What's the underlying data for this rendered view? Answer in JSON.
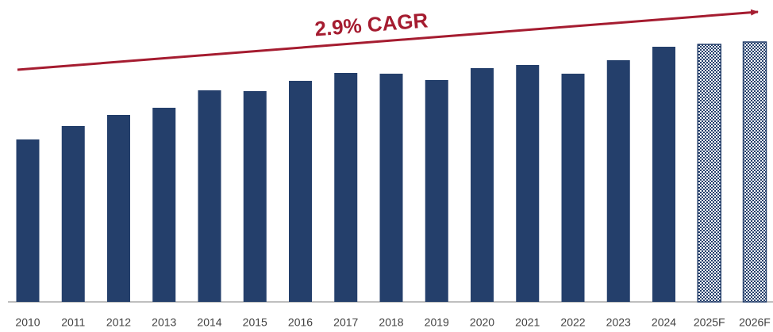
{
  "chart_data": {
    "type": "bar",
    "annotation": "2.9% CAGR",
    "categories": [
      "2010",
      "2011",
      "2012",
      "2013",
      "2014",
      "2015",
      "2016",
      "2017",
      "2018",
      "2019",
      "2020",
      "2021",
      "2022",
      "2023",
      "2024",
      "2025F",
      "2026F"
    ],
    "values": [
      205,
      222,
      236,
      245,
      267,
      266,
      279,
      289,
      288,
      280,
      295,
      299,
      288,
      305,
      322,
      325,
      328
    ],
    "color": "#243f6b",
    "hatch": [
      false,
      false,
      false,
      false,
      false,
      false,
      false,
      false,
      false,
      false,
      false,
      false,
      false,
      false,
      false,
      true,
      true
    ],
    "ylim": [
      0,
      330
    ]
  }
}
